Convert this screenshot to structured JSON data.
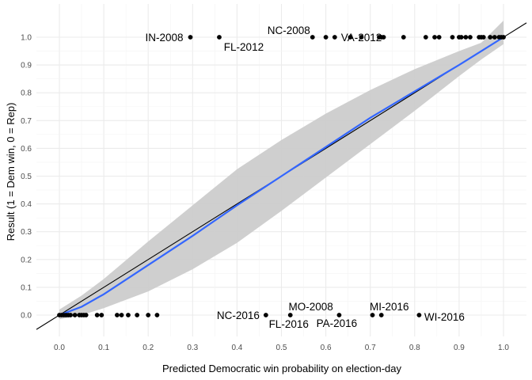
{
  "chart_data": {
    "type": "scatter",
    "xlabel": "Predicted Democratic win probability on election-day",
    "ylabel": "Result (1 = Dem win, 0 = Rep)",
    "xlim": [
      -0.05,
      1.05
    ],
    "ylim": [
      -0.05,
      1.05
    ],
    "x_ticks": [
      "0.0",
      "0.1",
      "0.2",
      "0.3",
      "0.4",
      "0.5",
      "0.6",
      "0.7",
      "0.8",
      "0.9",
      "1.0"
    ],
    "y_ticks": [
      "0.0",
      "0.1",
      "0.2",
      "0.3",
      "0.4",
      "0.5",
      "0.6",
      "0.7",
      "0.8",
      "0.9",
      "1.0"
    ],
    "grid": true,
    "points": [
      {
        "x": 0.0,
        "y": 0
      },
      {
        "x": 0.005,
        "y": 0
      },
      {
        "x": 0.01,
        "y": 0
      },
      {
        "x": 0.015,
        "y": 0
      },
      {
        "x": 0.02,
        "y": 0
      },
      {
        "x": 0.025,
        "y": 0
      },
      {
        "x": 0.035,
        "y": 0
      },
      {
        "x": 0.045,
        "y": 0
      },
      {
        "x": 0.05,
        "y": 0
      },
      {
        "x": 0.055,
        "y": 0
      },
      {
        "x": 0.06,
        "y": 0
      },
      {
        "x": 0.085,
        "y": 0
      },
      {
        "x": 0.095,
        "y": 0
      },
      {
        "x": 0.13,
        "y": 0
      },
      {
        "x": 0.14,
        "y": 0
      },
      {
        "x": 0.155,
        "y": 0
      },
      {
        "x": 0.175,
        "y": 0
      },
      {
        "x": 0.2,
        "y": 0
      },
      {
        "x": 0.22,
        "y": 0
      },
      {
        "x": 0.465,
        "y": 0
      },
      {
        "x": 0.52,
        "y": 0
      },
      {
        "x": 0.63,
        "y": 0
      },
      {
        "x": 0.705,
        "y": 0
      },
      {
        "x": 0.725,
        "y": 0
      },
      {
        "x": 0.81,
        "y": 0
      },
      {
        "x": 0.295,
        "y": 1
      },
      {
        "x": 0.36,
        "y": 1
      },
      {
        "x": 0.57,
        "y": 1
      },
      {
        "x": 0.6,
        "y": 1
      },
      {
        "x": 0.62,
        "y": 1
      },
      {
        "x": 0.655,
        "y": 1
      },
      {
        "x": 0.68,
        "y": 1
      },
      {
        "x": 0.72,
        "y": 1
      },
      {
        "x": 0.725,
        "y": 1
      },
      {
        "x": 0.73,
        "y": 1
      },
      {
        "x": 0.775,
        "y": 1
      },
      {
        "x": 0.825,
        "y": 1
      },
      {
        "x": 0.845,
        "y": 1
      },
      {
        "x": 0.855,
        "y": 1
      },
      {
        "x": 0.885,
        "y": 1
      },
      {
        "x": 0.9,
        "y": 1
      },
      {
        "x": 0.905,
        "y": 1
      },
      {
        "x": 0.915,
        "y": 1
      },
      {
        "x": 0.925,
        "y": 1
      },
      {
        "x": 0.945,
        "y": 1
      },
      {
        "x": 0.95,
        "y": 1
      },
      {
        "x": 0.955,
        "y": 1
      },
      {
        "x": 0.97,
        "y": 1
      },
      {
        "x": 0.98,
        "y": 1
      },
      {
        "x": 0.99,
        "y": 1
      },
      {
        "x": 0.995,
        "y": 1
      },
      {
        "x": 1.0,
        "y": 1
      }
    ],
    "annotations": [
      {
        "text": "IN-2008",
        "x": 0.295,
        "y": 1
      },
      {
        "text": "FL-2012",
        "x": 0.36,
        "y": 1
      },
      {
        "text": "NC-2008",
        "x": 0.57,
        "y": 1
      },
      {
        "text": "VA-2012",
        "x": 0.68,
        "y": 1
      },
      {
        "text": "NC-2016",
        "x": 0.465,
        "y": 0
      },
      {
        "text": "FL-2016",
        "x": 0.52,
        "y": 0
      },
      {
        "text": "MO-2008",
        "x": 0.6,
        "y": 0
      },
      {
        "text": "PA-2016",
        "x": 0.63,
        "y": 0
      },
      {
        "text": "MI-2016",
        "x": 0.725,
        "y": 0
      },
      {
        "text": "WI-2016",
        "x": 0.81,
        "y": 0
      }
    ],
    "reference_line": {
      "slope": 1,
      "intercept": 0,
      "color": "#000000"
    },
    "smooth_line": {
      "color": "#3366ff",
      "x": [
        0.0,
        0.05,
        0.1,
        0.2,
        0.3,
        0.4,
        0.5,
        0.6,
        0.7,
        0.8,
        0.9,
        0.95,
        1.0
      ],
      "y": [
        0.0,
        0.03,
        0.075,
        0.18,
        0.285,
        0.395,
        0.5,
        0.605,
        0.71,
        0.805,
        0.9,
        0.95,
        1.0
      ],
      "ci_lower": [
        -0.015,
        0.0,
        0.025,
        0.085,
        0.165,
        0.26,
        0.375,
        0.495,
        0.615,
        0.735,
        0.86,
        0.92,
        0.975
      ],
      "ci_upper": [
        0.02,
        0.07,
        0.13,
        0.265,
        0.395,
        0.525,
        0.63,
        0.725,
        0.81,
        0.885,
        0.95,
        0.98,
        1.06
      ]
    },
    "colors": {
      "points": "#000000",
      "ribbon": "#cccccc",
      "grid": "#ebebeb"
    }
  }
}
